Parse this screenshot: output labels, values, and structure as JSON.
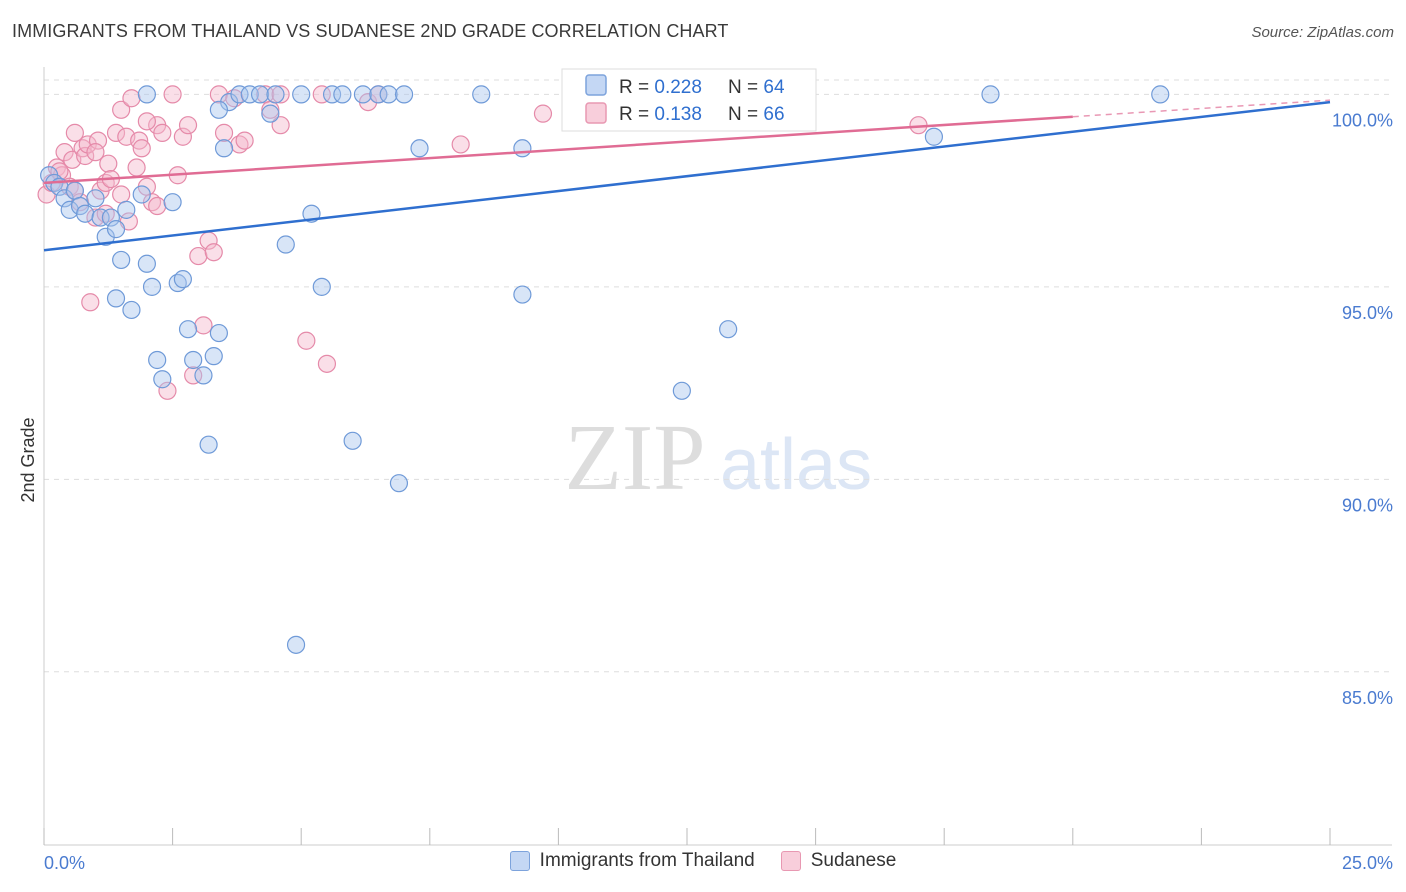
{
  "header": {
    "title": "IMMIGRANTS FROM THAILAND VS SUDANESE 2ND GRADE CORRELATION CHART",
    "source": "Source: ZipAtlas.com"
  },
  "watermark": {
    "zip": "ZIP",
    "atlas": "atlas"
  },
  "colors": {
    "blue_fill": "#a9c6ee",
    "blue_stroke": "#6f9ad8",
    "blue_line": "#2f6fcf",
    "pink_fill": "#f5b7cb",
    "pink_stroke": "#e58aa9",
    "pink_line": "#e06c94",
    "tick_label": "#4a7bd0",
    "grid": "#dddddd"
  },
  "stats_box": {
    "rows": [
      {
        "r_label": "R = ",
        "r_value": "0.228",
        "n_label": "N = ",
        "n_value": "64"
      },
      {
        "r_label": "R = ",
        "r_value": "0.138",
        "n_label": "N = ",
        "n_value": "66"
      }
    ]
  },
  "chart_data": {
    "type": "scatter",
    "title": "IMMIGRANTS FROM THAILAND VS SUDANESE 2ND GRADE CORRELATION CHART",
    "xlabel": "",
    "ylabel": "2nd Grade",
    "xlim": [
      0,
      25
    ],
    "ylim": [
      80.5,
      100.4
    ],
    "x_tick_labels": [
      "0.0%",
      "25.0%"
    ],
    "y_ticks": [
      100,
      95,
      90,
      85
    ],
    "y_tick_labels": [
      "100.0%",
      "95.0%",
      "90.0%",
      "85.0%"
    ],
    "legend_position": "bottom-center",
    "series": [
      {
        "name": "Immigrants from Thailand",
        "r": 0.228,
        "n": 64,
        "trend": {
          "x": [
            0,
            25
          ],
          "y": [
            95.95,
            99.8
          ],
          "dashed_from": null
        },
        "points": [
          [
            0.1,
            97.9
          ],
          [
            0.2,
            97.7
          ],
          [
            0.3,
            97.6
          ],
          [
            0.4,
            97.3
          ],
          [
            0.5,
            97.0
          ],
          [
            0.6,
            97.5
          ],
          [
            0.7,
            97.1
          ],
          [
            0.8,
            96.9
          ],
          [
            1.0,
            97.3
          ],
          [
            1.1,
            96.8
          ],
          [
            1.2,
            96.3
          ],
          [
            1.3,
            96.8
          ],
          [
            1.4,
            96.5
          ],
          [
            1.4,
            94.7
          ],
          [
            1.5,
            95.7
          ],
          [
            1.6,
            97.0
          ],
          [
            1.7,
            94.4
          ],
          [
            1.9,
            97.4
          ],
          [
            2.0,
            95.6
          ],
          [
            2.1,
            95.0
          ],
          [
            2.2,
            93.1
          ],
          [
            2.3,
            92.6
          ],
          [
            2.5,
            97.2
          ],
          [
            2.6,
            95.1
          ],
          [
            2.7,
            95.2
          ],
          [
            2.8,
            93.9
          ],
          [
            2.9,
            93.1
          ],
          [
            3.1,
            92.7
          ],
          [
            3.2,
            90.9
          ],
          [
            3.3,
            93.2
          ],
          [
            3.4,
            93.8
          ],
          [
            3.5,
            98.6
          ],
          [
            3.6,
            99.8
          ],
          [
            3.8,
            100.0
          ],
          [
            4.0,
            100.0
          ],
          [
            4.2,
            100.0
          ],
          [
            4.4,
            99.5
          ],
          [
            4.5,
            100.0
          ],
          [
            4.7,
            96.1
          ],
          [
            4.9,
            85.7
          ],
          [
            5.0,
            100.0
          ],
          [
            5.2,
            96.9
          ],
          [
            5.4,
            95.0
          ],
          [
            5.6,
            100.0
          ],
          [
            5.8,
            100.0
          ],
          [
            6.0,
            91.0
          ],
          [
            6.2,
            100.0
          ],
          [
            6.5,
            100.0
          ],
          [
            6.7,
            100.0
          ],
          [
            6.9,
            89.9
          ],
          [
            7.0,
            100.0
          ],
          [
            7.3,
            98.6
          ],
          [
            8.5,
            100.0
          ],
          [
            9.3,
            98.6
          ],
          [
            9.3,
            94.8
          ],
          [
            11.0,
            100.0
          ],
          [
            11.4,
            100.0
          ],
          [
            12.4,
            92.3
          ],
          [
            13.3,
            93.9
          ],
          [
            17.3,
            98.9
          ],
          [
            18.4,
            100.0
          ],
          [
            21.7,
            100.0
          ],
          [
            3.4,
            99.6
          ],
          [
            2.0,
            100.0
          ]
        ]
      },
      {
        "name": "Sudanese",
        "r": 0.138,
        "n": 66,
        "trend": {
          "x": [
            0,
            25
          ],
          "y": [
            97.7,
            99.85
          ],
          "dashed_from": 20.0
        },
        "points": [
          [
            0.05,
            97.4
          ],
          [
            0.15,
            97.7
          ],
          [
            0.25,
            98.1
          ],
          [
            0.35,
            97.9
          ],
          [
            0.4,
            98.5
          ],
          [
            0.5,
            97.6
          ],
          [
            0.55,
            98.3
          ],
          [
            0.6,
            97.5
          ],
          [
            0.7,
            97.2
          ],
          [
            0.75,
            98.6
          ],
          [
            0.8,
            98.4
          ],
          [
            0.85,
            98.7
          ],
          [
            0.9,
            94.6
          ],
          [
            1.0,
            96.8
          ],
          [
            1.05,
            98.8
          ],
          [
            1.1,
            97.5
          ],
          [
            1.2,
            97.7
          ],
          [
            1.25,
            98.2
          ],
          [
            1.3,
            97.8
          ],
          [
            1.4,
            99.0
          ],
          [
            1.5,
            99.6
          ],
          [
            1.6,
            98.9
          ],
          [
            1.65,
            96.7
          ],
          [
            1.7,
            99.9
          ],
          [
            1.8,
            98.1
          ],
          [
            1.85,
            98.8
          ],
          [
            1.9,
            98.6
          ],
          [
            2.0,
            97.6
          ],
          [
            2.1,
            97.2
          ],
          [
            2.2,
            99.2
          ],
          [
            2.3,
            99.0
          ],
          [
            2.4,
            92.3
          ],
          [
            2.5,
            100.0
          ],
          [
            2.6,
            97.9
          ],
          [
            2.7,
            98.9
          ],
          [
            2.8,
            99.2
          ],
          [
            2.9,
            92.7
          ],
          [
            3.0,
            95.8
          ],
          [
            3.1,
            94.0
          ],
          [
            3.2,
            96.2
          ],
          [
            3.3,
            95.9
          ],
          [
            3.4,
            100.0
          ],
          [
            3.5,
            99.0
          ],
          [
            3.7,
            99.9
          ],
          [
            3.8,
            98.7
          ],
          [
            4.3,
            100.0
          ],
          [
            4.4,
            99.6
          ],
          [
            4.6,
            99.2
          ],
          [
            5.1,
            93.6
          ],
          [
            5.4,
            100.0
          ],
          [
            5.5,
            93.0
          ],
          [
            6.3,
            99.8
          ],
          [
            6.5,
            100.0
          ],
          [
            8.1,
            98.7
          ],
          [
            9.7,
            99.5
          ],
          [
            11.1,
            100.0
          ],
          [
            1.0,
            98.5
          ],
          [
            1.5,
            97.4
          ],
          [
            0.3,
            98.0
          ],
          [
            2.0,
            99.3
          ],
          [
            3.9,
            98.8
          ],
          [
            17.0,
            99.2
          ],
          [
            4.6,
            100.0
          ],
          [
            0.6,
            99.0
          ],
          [
            1.2,
            96.9
          ],
          [
            2.2,
            97.1
          ]
        ]
      }
    ]
  },
  "legend": {
    "items": [
      {
        "label": "Immigrants from Thailand",
        "color": "blue"
      },
      {
        "label": "Sudanese",
        "color": "pink"
      }
    ]
  }
}
